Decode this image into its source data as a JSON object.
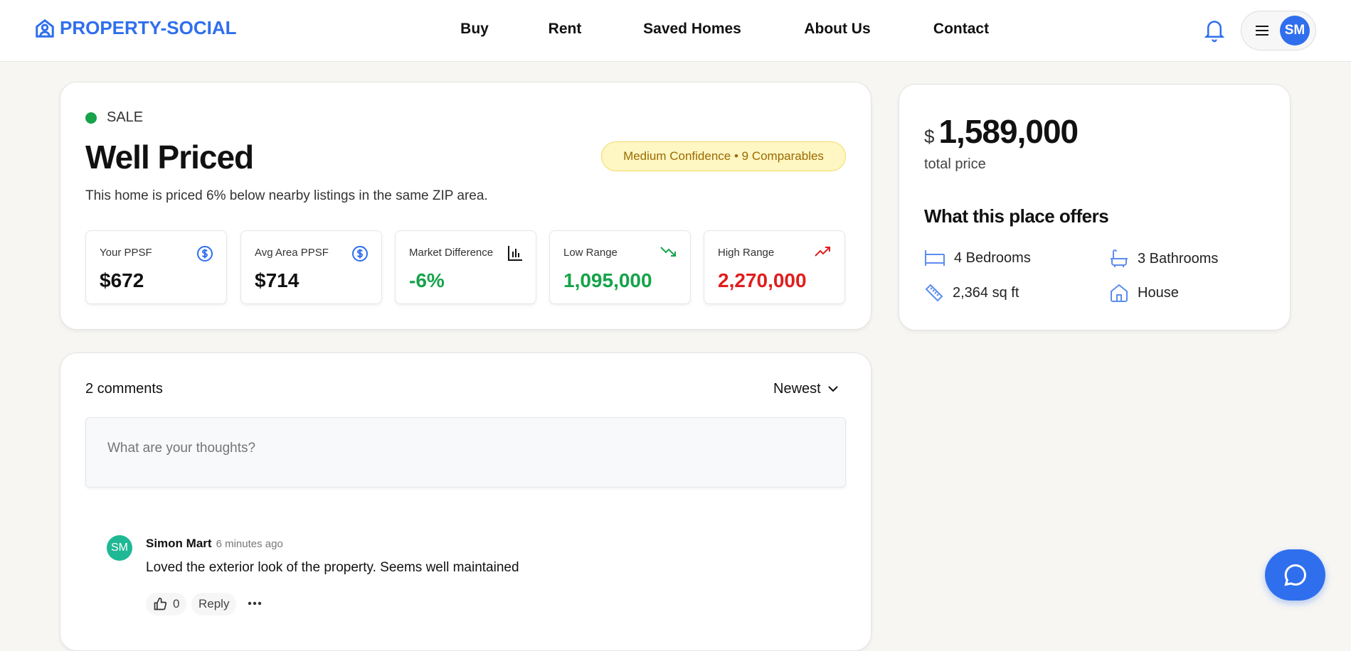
{
  "header": {
    "logo": "PROPERTY-SOCIAL",
    "nav": [
      "Buy",
      "Rent",
      "Saved Homes",
      "About Us",
      "Contact"
    ],
    "avatar_initials": "SM"
  },
  "valuation": {
    "listing_type": "SALE",
    "verdict": "Well Priced",
    "badge": "Medium Confidence • 9 Comparables",
    "description": "This home is priced 6% below nearby listings in the same ZIP area.",
    "stats": [
      {
        "label": "Your PPSF",
        "value": "$672",
        "icon": "dollar-circle-icon",
        "color": "#111111"
      },
      {
        "label": "Avg Area PPSF",
        "value": "$714",
        "icon": "dollar-circle-icon",
        "color": "#111111"
      },
      {
        "label": "Market Difference",
        "value": "-6%",
        "icon": "bar-chart-icon",
        "color": "#16a34a"
      },
      {
        "label": "Low Range",
        "value": "1,095,000",
        "icon": "trending-down-icon",
        "color": "#16a34a"
      },
      {
        "label": "High Range",
        "value": "2,270,000",
        "icon": "trending-up-icon",
        "color": "#e11d1d"
      }
    ]
  },
  "price": {
    "currency": "$",
    "amount": "1,589,000",
    "caption": "total price",
    "offers_title": "What this place offers",
    "amenities": [
      {
        "icon": "bed-icon",
        "label": "4 Bedrooms"
      },
      {
        "icon": "bath-icon",
        "label": "3 Bathrooms"
      },
      {
        "icon": "ruler-icon",
        "label": "2,364 sq ft"
      },
      {
        "icon": "house-icon",
        "label": "House"
      }
    ]
  },
  "comments": {
    "count_label": "2 comments",
    "sort": "Newest",
    "placeholder": "What are your thoughts?",
    "items": [
      {
        "initials": "SM",
        "author": "Simon Mart",
        "time": "6 minutes ago",
        "text": "Loved the exterior look of the property. Seems well maintained",
        "likes": "0",
        "reply": "Reply"
      }
    ]
  },
  "colors": {
    "accent": "#2f6fed",
    "positive": "#16a34a",
    "negative": "#e11d1d",
    "avatar_comment": "#1fb894"
  }
}
